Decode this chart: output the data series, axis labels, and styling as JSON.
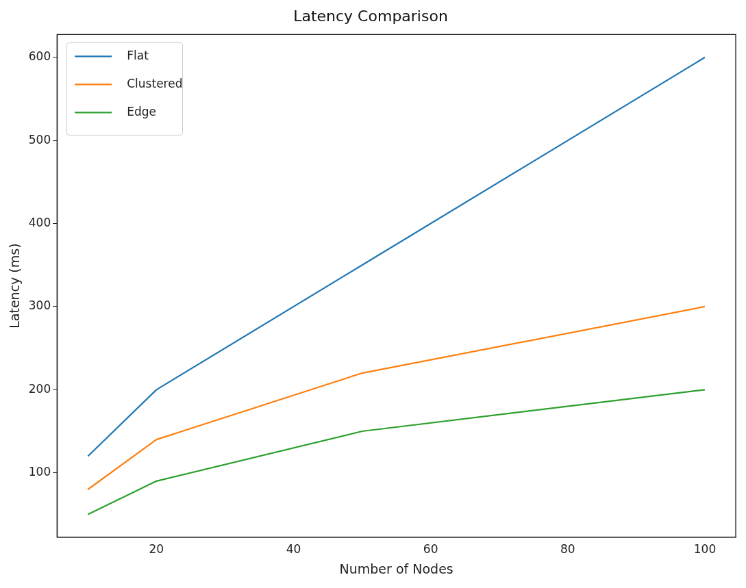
{
  "chart_data": {
    "type": "line",
    "title": "Latency Comparison",
    "xlabel": "Number of Nodes",
    "ylabel": "Latency (ms)",
    "x": [
      10,
      20,
      50,
      100
    ],
    "series": [
      {
        "name": "Flat",
        "color": "#1f77b4",
        "values": [
          120,
          200,
          350,
          600
        ]
      },
      {
        "name": "Clustered",
        "color": "#ff7f0e",
        "values": [
          80,
          140,
          220,
          300
        ]
      },
      {
        "name": "Edge",
        "color": "#2ca02c",
        "values": [
          50,
          90,
          150,
          200
        ]
      }
    ],
    "xlim": [
      5.5,
      104.5
    ],
    "xticks": [
      20,
      40,
      60,
      80,
      100
    ],
    "ylim": [
      22.5,
      627.5
    ],
    "yticks": [
      100,
      200,
      300,
      400,
      500,
      600
    ],
    "grid": false,
    "legend": "top left",
    "marker": "none",
    "line_style": "solid"
  }
}
